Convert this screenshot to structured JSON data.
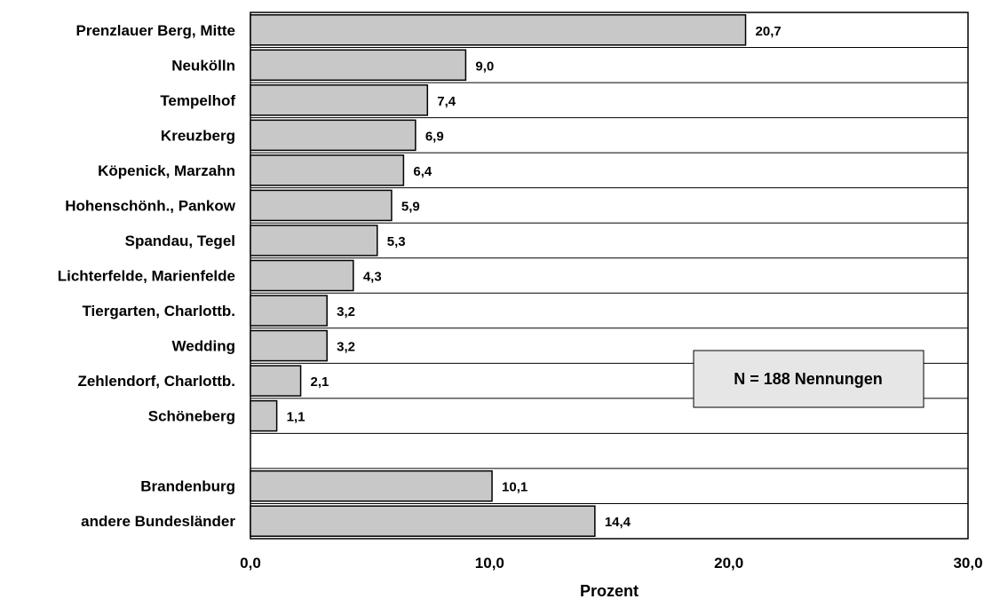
{
  "chart_data": {
    "type": "bar",
    "orientation": "horizontal",
    "title": "",
    "xlabel": "Prozent",
    "ylabel": "",
    "xlim": [
      0,
      30
    ],
    "x_ticks": [
      "0,0",
      "10,0",
      "20,0",
      "30,0"
    ],
    "categories": [
      "Prenzlauer Berg, Mitte",
      "Neukölln",
      "Tempelhof",
      "Kreuzberg",
      "Köpenick, Marzahn",
      "Hohenschönh., Pankow",
      "Spandau, Tegel",
      "Lichterfelde, Marienfelde",
      "Tiergarten, Charlottb.",
      "Wedding",
      "Zehlendorf, Charlottb.",
      "Schöneberg",
      "",
      "Brandenburg",
      "andere Bundesländer"
    ],
    "values": [
      20.7,
      9.0,
      7.4,
      6.9,
      6.4,
      5.9,
      5.3,
      4.3,
      3.2,
      3.2,
      2.1,
      1.1,
      null,
      10.1,
      14.4
    ],
    "value_labels": [
      "20,7",
      "9,0",
      "7,4",
      "6,9",
      "6,4",
      "5,9",
      "5,3",
      "4,3",
      "3,2",
      "3,2",
      "2,1",
      "1,1",
      "",
      "10,1",
      "14,4"
    ],
    "annotation": "N = 188 Nennungen",
    "bar_color": "#c8c8c8",
    "grid": "horizontal row separators",
    "legend": "none"
  }
}
